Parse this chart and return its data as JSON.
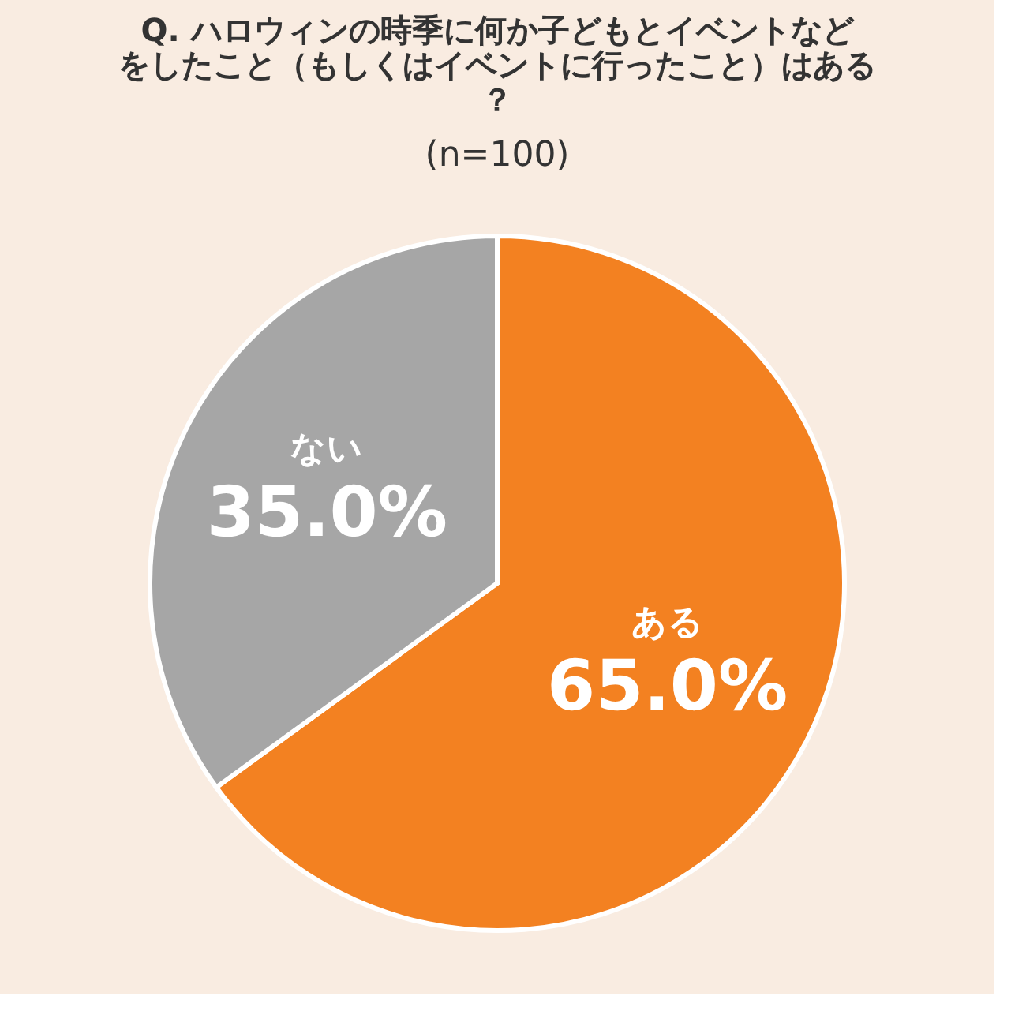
{
  "chart_data": {
    "type": "pie",
    "title": "Q. ハロウィンの時季に何か子どもとイベントなどをしたこと（もしくはイベントに行ったこと）はある？",
    "subtitle": "(n=100)",
    "categories": [
      "ある",
      "ない"
    ],
    "values": [
      65.0,
      35.0
    ],
    "value_labels": [
      "65.0%",
      "35.0%"
    ],
    "colors": [
      "#f38121",
      "#a6a6a6"
    ],
    "legend": false
  }
}
